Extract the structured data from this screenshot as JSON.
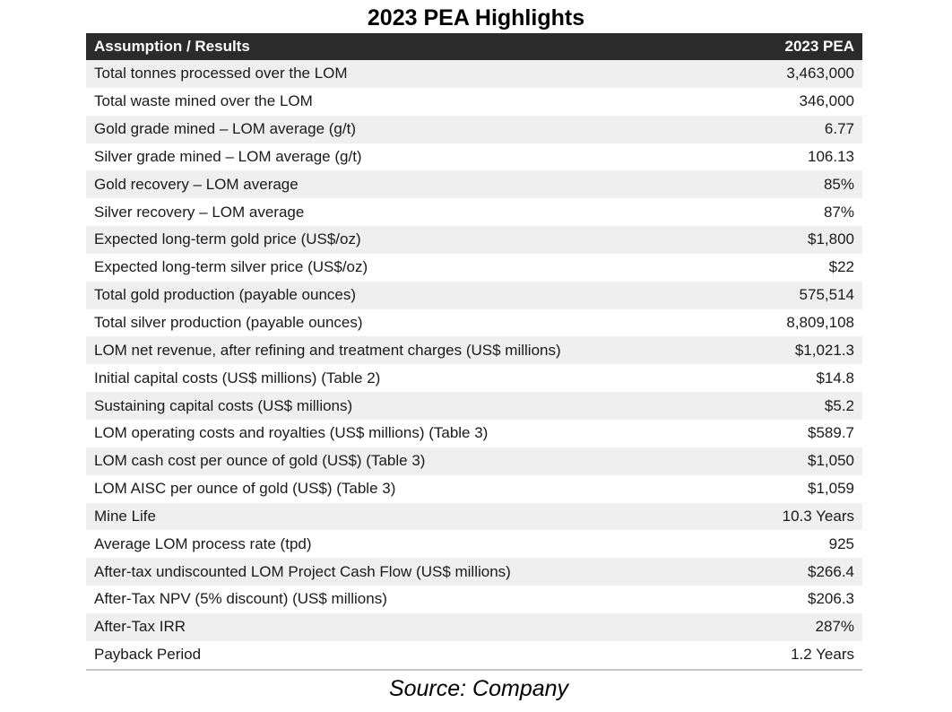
{
  "title": "2023 PEA Highlights",
  "table": {
    "headers": [
      "Assumption / Results",
      "2023 PEA"
    ],
    "rows": [
      {
        "label": "Total tonnes processed over the LOM",
        "value": "3,463,000"
      },
      {
        "label": "Total waste mined over the LOM",
        "value": "346,000"
      },
      {
        "label": "Gold grade mined – LOM average (g/t)",
        "value": "6.77"
      },
      {
        "label": "Silver grade mined – LOM average (g/t)",
        "value": "106.13"
      },
      {
        "label": "Gold recovery – LOM average",
        "value": "85%"
      },
      {
        "label": "Silver recovery – LOM average",
        "value": "87%"
      },
      {
        "label": "Expected long-term gold price (US$/oz)",
        "value": "$1,800"
      },
      {
        "label": "Expected long-term silver price (US$/oz)",
        "value": "$22"
      },
      {
        "label": "Total gold production (payable ounces)",
        "value": "575,514"
      },
      {
        "label": "Total silver production (payable ounces)",
        "value": "8,809,108"
      },
      {
        "label": "LOM net revenue, after refining and treatment charges (US$ millions)",
        "value": "$1,021.3"
      },
      {
        "label": "Initial capital costs (US$ millions) (Table 2)",
        "value": "$14.8"
      },
      {
        "label": "Sustaining capital costs (US$ millions)",
        "value": "$5.2"
      },
      {
        "label": "LOM operating costs and royalties (US$ millions) (Table 3)",
        "value": "$589.7"
      },
      {
        "label": "LOM cash cost per ounce of gold (US$) (Table 3)",
        "value": "$1,050"
      },
      {
        "label": "LOM AISC per ounce of gold (US$) (Table 3)",
        "value": "$1,059"
      },
      {
        "label": "Mine Life",
        "value": "10.3 Years"
      },
      {
        "label": "Average LOM process rate (tpd)",
        "value": "925"
      },
      {
        "label": "After-tax undiscounted LOM Project Cash Flow (US$ millions)",
        "value": "$266.4"
      },
      {
        "label": "After-Tax NPV (5% discount) (US$ millions)",
        "value": "$206.3"
      },
      {
        "label": "After-Tax IRR",
        "value": "287%"
      },
      {
        "label": "Payback Period",
        "value": "1.2 Years"
      }
    ]
  },
  "source": "Source: Company",
  "colors": {
    "header_bg": "#2b2b2b",
    "stripe_bg": "#efefef"
  }
}
